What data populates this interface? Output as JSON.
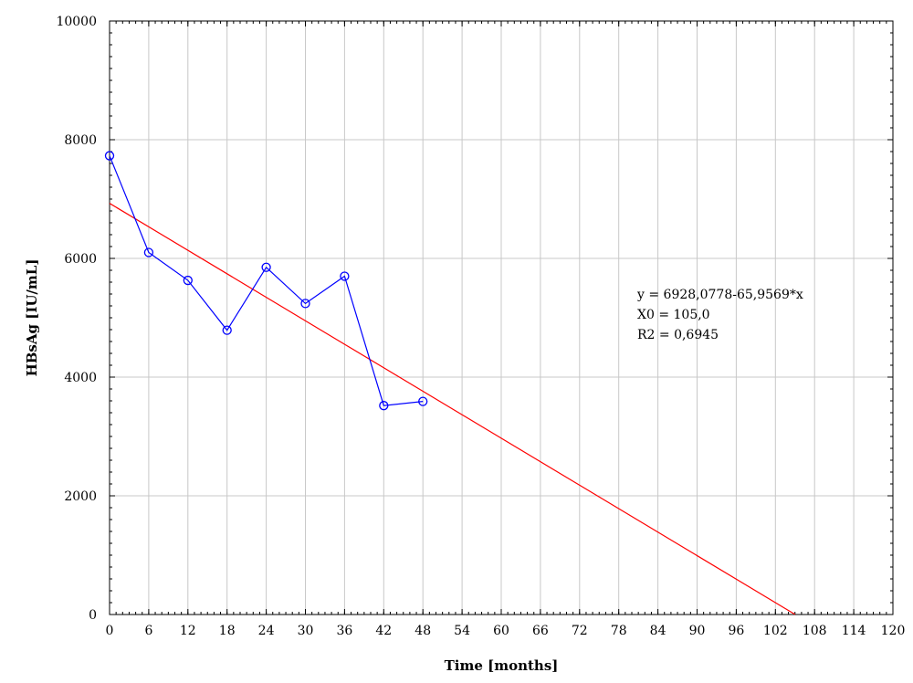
{
  "chart_data": {
    "type": "scatter",
    "xlabel": "Time [months]",
    "ylabel": "HBsAg [IU/mL]",
    "xlim": [
      0,
      120
    ],
    "ylim": [
      0,
      10000
    ],
    "x_ticks": [
      0,
      6,
      12,
      18,
      24,
      30,
      36,
      42,
      48,
      54,
      60,
      66,
      72,
      78,
      84,
      90,
      96,
      102,
      108,
      114,
      120
    ],
    "y_ticks": [
      0,
      2000,
      4000,
      6000,
      8000,
      10000
    ],
    "grid": true,
    "series": [
      {
        "type": "line-markers",
        "color": "#0000ff",
        "marker": "open-circle",
        "points": [
          {
            "x": 0,
            "y": 7730
          },
          {
            "x": 6,
            "y": 6100
          },
          {
            "x": 12,
            "y": 5630
          },
          {
            "x": 18,
            "y": 4790
          },
          {
            "x": 24,
            "y": 5850
          },
          {
            "x": 30,
            "y": 5240
          },
          {
            "x": 36,
            "y": 5700
          },
          {
            "x": 42,
            "y": 3520
          },
          {
            "x": 48,
            "y": 3590
          }
        ]
      },
      {
        "type": "fit-line",
        "color": "#ff0000",
        "intercept": 6928.0778,
        "slope": -65.9569,
        "x_range": [
          0,
          105
        ]
      }
    ],
    "annotations": [
      "y = 6928,0778-65,9569*x",
      "X0 = 105,0",
      "R2 = 0,6945"
    ]
  }
}
